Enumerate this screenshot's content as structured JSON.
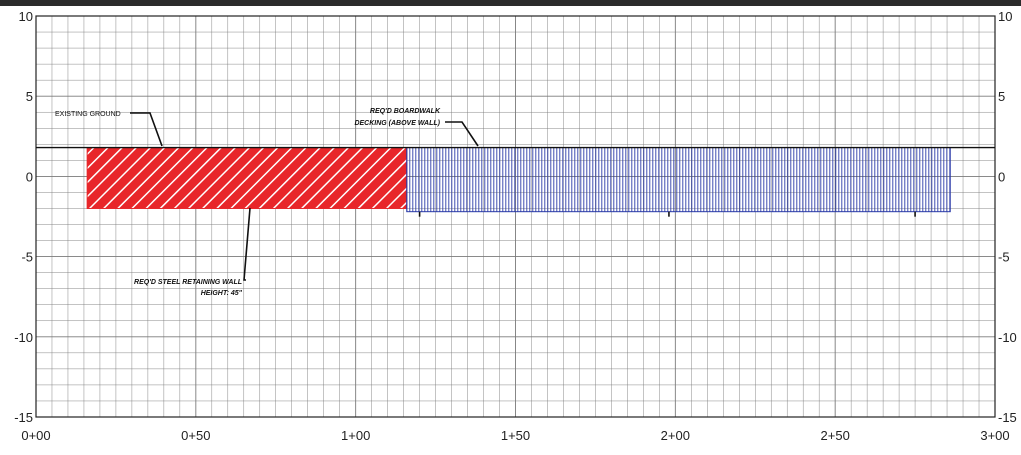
{
  "profile": {
    "x_ticks": [
      "0+00",
      "0+50",
      "1+00",
      "1+50",
      "2+00",
      "2+50",
      "3+00"
    ],
    "x_range": [
      0,
      300
    ],
    "y_ticks_left": [
      "10",
      "5",
      "0",
      "-5",
      "-10",
      "-15"
    ],
    "y_ticks_right": [
      "10",
      "5",
      "0",
      "-5",
      "-10",
      "-15"
    ],
    "y_range": [
      -15,
      10
    ],
    "existing_ground_elev": 1.8,
    "colors": {
      "grid": "#7a7a7a",
      "frame": "#222222",
      "wall": "#e8262a",
      "wall_hatch": "#ffffff",
      "boardwalk": "#2a3aa8",
      "ground": "#111111",
      "top_bar": "#2b2b2b"
    },
    "retaining_wall": {
      "station_start": 16,
      "station_end": 116,
      "top_elev": 1.8,
      "bottom_elev": -2.0
    },
    "boardwalk": {
      "station_start": 116,
      "station_end": 286,
      "top_elev": 1.8,
      "bottom_elev": -2.2
    },
    "annotations": {
      "existing_ground": "EXISTING GROUND",
      "boardwalk_line1": "REQ'D BOARDWALK",
      "boardwalk_line2": "DECKING (ABOVE WALL)",
      "wall_line1": "REQ'D  STEEL RETAINING WALL",
      "wall_line2": "HEIGHT: 45\""
    }
  }
}
